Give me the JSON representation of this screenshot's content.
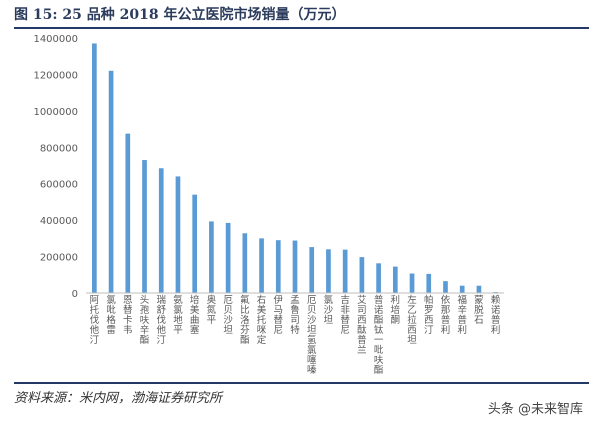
{
  "figure": {
    "title": "图 15: 25 品种 2018 年公立医院市场销量（万元）",
    "source": "资料来源：米内网，渤海证券研究所",
    "watermark": "头条 @未来智库"
  },
  "colors": {
    "bar": "#5b9bd5",
    "title": "#2b3b5c",
    "rule": "#243a66",
    "axis": "#bfbfbf",
    "text": "#595959"
  },
  "chart_data": {
    "type": "bar",
    "title": "",
    "xlabel": "",
    "ylabel": "",
    "ylim": [
      0,
      1400000
    ],
    "yticks": [
      0,
      200000,
      400000,
      600000,
      800000,
      1000000,
      1200000,
      1400000
    ],
    "ytick_labels": [
      "0",
      "200000",
      "400000",
      "600000",
      "800000",
      "1000000",
      "1200000",
      "1400000"
    ],
    "grid": false,
    "legend": "none",
    "categories": [
      "阿托伐他汀",
      "氯吡格雷",
      "恩替卡韦",
      "头孢呋辛酯",
      "瑞舒伐他汀",
      "氨氯地平",
      "培美曲塞",
      "奥氮平",
      "厄贝沙坦",
      "氟比洛芬酯",
      "右美托咪定",
      "伊马替尼",
      "孟鲁司特",
      "厄贝沙坦氢氯噻嗪",
      "氯沙坦",
      "吉非替尼",
      "艾司西酞普兰",
      "普诺酯钛一吡呋酯",
      "利培酮",
      "左乙拉西坦",
      "帕罗西汀",
      "依那普利",
      "福辛普利",
      "蒙脱石",
      "赖诺普利"
    ],
    "values": [
      1370000,
      1220000,
      875000,
      730000,
      685000,
      640000,
      540000,
      393000,
      385000,
      328000,
      300000,
      290000,
      288000,
      252000,
      240000,
      238000,
      197000,
      163000,
      145000,
      107000,
      105000,
      65000,
      40000,
      40000,
      5000
    ]
  }
}
